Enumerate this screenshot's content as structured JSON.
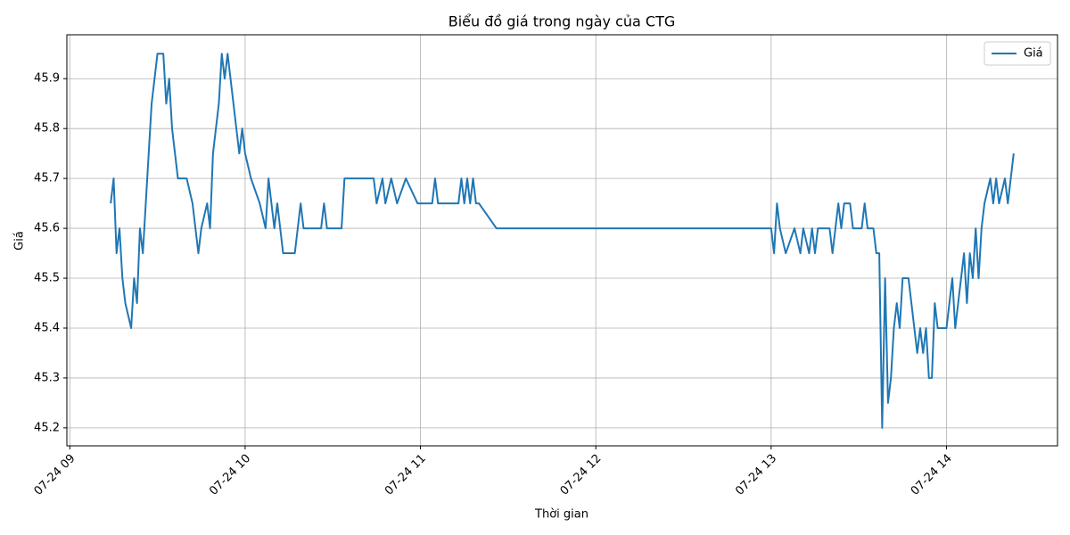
{
  "chart_data": {
    "type": "line",
    "title": "Biểu đồ giá trong ngày của CTG",
    "x_label": "Thời gian",
    "y_label": "Giá",
    "x": [
      554,
      555,
      556,
      557,
      558,
      559,
      561,
      562,
      563,
      564,
      565,
      566,
      567,
      568,
      569,
      570,
      572,
      573,
      574,
      575,
      576,
      577,
      580,
      582,
      583,
      584,
      585,
      587,
      588,
      589,
      590,
      591,
      592,
      593,
      594,
      595,
      596,
      597,
      598,
      599,
      600,
      602,
      605,
      607,
      608,
      609,
      610,
      611,
      612,
      613,
      617,
      618,
      619,
      620,
      626,
      627,
      628,
      633,
      634,
      644,
      645,
      647,
      648,
      650,
      652,
      655,
      659,
      664,
      665,
      666,
      673,
      674,
      675,
      676,
      677,
      678,
      679,
      680,
      686,
      780,
      781,
      782,
      783,
      785,
      788,
      790,
      791,
      793,
      794,
      795,
      796,
      800,
      801,
      802,
      803,
      804,
      805,
      807,
      808,
      811,
      812,
      813,
      815,
      816,
      817,
      818,
      819,
      820,
      821,
      822,
      823,
      824,
      825,
      827,
      828,
      829,
      830,
      831,
      832,
      833,
      834,
      835,
      836,
      837,
      840,
      841,
      842,
      843,
      844,
      845,
      846,
      847,
      848,
      849,
      850,
      851,
      852,
      853,
      855,
      856,
      857,
      858,
      860,
      861,
      862,
      863
    ],
    "series": [
      {
        "name": "Giá",
        "color": "#1f77b4",
        "values": [
          45.65,
          45.7,
          45.55,
          45.6,
          45.5,
          45.45,
          45.4,
          45.5,
          45.45,
          45.6,
          45.55,
          45.65,
          45.75,
          45.85,
          45.9,
          45.95,
          45.95,
          45.85,
          45.9,
          45.8,
          45.75,
          45.7,
          45.7,
          45.65,
          45.6,
          45.55,
          45.6,
          45.65,
          45.6,
          45.75,
          45.8,
          45.85,
          45.95,
          45.9,
          45.95,
          45.9,
          45.85,
          45.8,
          45.75,
          45.8,
          45.75,
          45.7,
          45.65,
          45.6,
          45.7,
          45.65,
          45.6,
          45.65,
          45.6,
          45.55,
          45.55,
          45.6,
          45.65,
          45.6,
          45.6,
          45.65,
          45.6,
          45.6,
          45.7,
          45.7,
          45.65,
          45.7,
          45.65,
          45.7,
          45.65,
          45.7,
          45.65,
          45.65,
          45.7,
          45.65,
          45.65,
          45.7,
          45.65,
          45.7,
          45.65,
          45.7,
          45.65,
          45.65,
          45.6,
          45.6,
          45.55,
          45.65,
          45.6,
          45.55,
          45.6,
          45.55,
          45.6,
          45.55,
          45.6,
          45.55,
          45.6,
          45.6,
          45.55,
          45.6,
          45.65,
          45.6,
          45.65,
          45.65,
          45.6,
          45.6,
          45.65,
          45.6,
          45.6,
          45.55,
          45.55,
          45.2,
          45.5,
          45.25,
          45.3,
          45.4,
          45.45,
          45.4,
          45.5,
          45.5,
          45.45,
          45.4,
          45.35,
          45.4,
          45.35,
          45.4,
          45.3,
          45.3,
          45.45,
          45.4,
          45.4,
          45.45,
          45.5,
          45.4,
          45.45,
          45.5,
          45.55,
          45.45,
          45.55,
          45.5,
          45.6,
          45.5,
          45.6,
          45.65,
          45.7,
          45.65,
          45.7,
          45.65,
          45.7,
          45.65,
          45.7,
          45.75
        ]
      }
    ],
    "xlim": [
      539,
      878
    ],
    "xticks": [
      {
        "value": 540,
        "label": "07-24 09"
      },
      {
        "value": 600,
        "label": "07-24 10"
      },
      {
        "value": 660,
        "label": "07-24 11"
      },
      {
        "value": 720,
        "label": "07-24 12"
      },
      {
        "value": 780,
        "label": "07-24 13"
      },
      {
        "value": 840,
        "label": "07-24 14"
      }
    ],
    "ylim": [
      45.164,
      45.988
    ],
    "yticks": [
      45.2,
      45.3,
      45.4,
      45.5,
      45.6,
      45.7,
      45.8,
      45.9
    ],
    "grid": true,
    "legend": "upper right"
  }
}
